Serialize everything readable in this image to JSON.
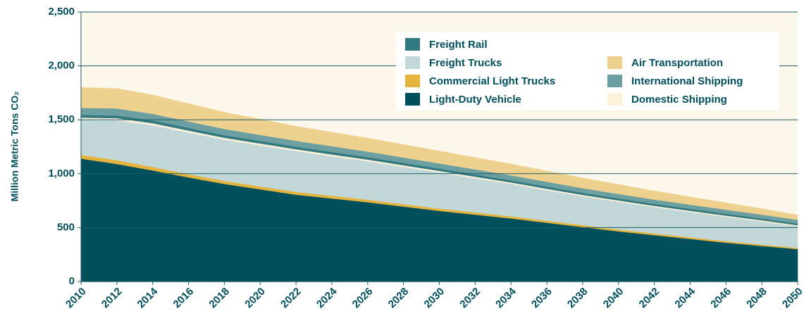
{
  "chart_data": {
    "type": "stacked_area",
    "y_label": "Million Metric Tons CO₂",
    "x": [
      2010,
      2012,
      2014,
      2016,
      2018,
      2020,
      2022,
      2024,
      2026,
      2028,
      2030,
      2032,
      2034,
      2036,
      2038,
      2040,
      2042,
      2044,
      2046,
      2048,
      2050
    ],
    "xlim": [
      2010,
      2050
    ],
    "xticks": [
      2010,
      2012,
      2014,
      2016,
      2018,
      2020,
      2022,
      2024,
      2026,
      2028,
      2030,
      2032,
      2034,
      2036,
      2038,
      2040,
      2042,
      2044,
      2046,
      2048,
      2050
    ],
    "ylim": [
      0,
      2500
    ],
    "yticks": [
      0,
      500,
      {
        "value": 1000,
        "label": "1,000"
      },
      {
        "value": 1500,
        "label": "1,500"
      },
      {
        "value": 2000,
        "label": "2,000"
      },
      {
        "value": 2500,
        "label": "2,500"
      }
    ],
    "grid": true,
    "legend": "top-right",
    "series": [
      {
        "name": "Light-Duty Vehicle",
        "color": "#004f5c",
        "values": [
          1140,
          1090,
          1030,
          965,
          905,
          855,
          805,
          770,
          735,
          695,
          655,
          620,
          585,
          545,
          505,
          465,
          430,
          395,
          360,
          330,
          300
        ]
      },
      {
        "name": "Commercial Light Trucks",
        "color": "#e5b43c",
        "values": [
          35,
          35,
          32,
          30,
          28,
          27,
          26,
          25,
          24,
          23,
          22,
          21,
          20,
          19,
          18,
          17,
          16,
          15,
          14,
          13,
          12
        ]
      },
      {
        "name": "Freight Trucks",
        "color": "#c1d7d8",
        "values": [
          325,
          370,
          387,
          386,
          382,
          380,
          379,
          366,
          356,
          344,
          334,
          316,
          300,
          282,
          267,
          257,
          244,
          234,
          226,
          214,
          200
        ]
      },
      {
        "name": "Domestic Shipping",
        "color": "#fbf0d8",
        "values": [
          20,
          20,
          19,
          19,
          18,
          18,
          17,
          17,
          16,
          16,
          15,
          15,
          14,
          14,
          13,
          13,
          12,
          12,
          11,
          11,
          10
        ]
      },
      {
        "name": "Freight Rail",
        "color": "#327a80",
        "values": [
          25,
          25,
          25,
          25,
          24,
          24,
          23,
          23,
          22,
          22,
          21,
          21,
          20,
          20,
          19,
          19,
          18,
          18,
          17,
          16,
          15
        ]
      },
      {
        "name": "International Shipping",
        "color": "#6c9fa1",
        "values": [
          65,
          65,
          62,
          60,
          58,
          56,
          55,
          54,
          52,
          50,
          48,
          47,
          46,
          45,
          43,
          41,
          40,
          39,
          38,
          36,
          35
        ]
      },
      {
        "name": "Air Transportation",
        "color": "#efd18f",
        "values": [
          190,
          185,
          175,
          165,
          155,
          145,
          135,
          130,
          125,
          120,
          115,
          110,
          105,
          100,
          95,
          88,
          80,
          72,
          64,
          55,
          45
        ]
      }
    ]
  }
}
